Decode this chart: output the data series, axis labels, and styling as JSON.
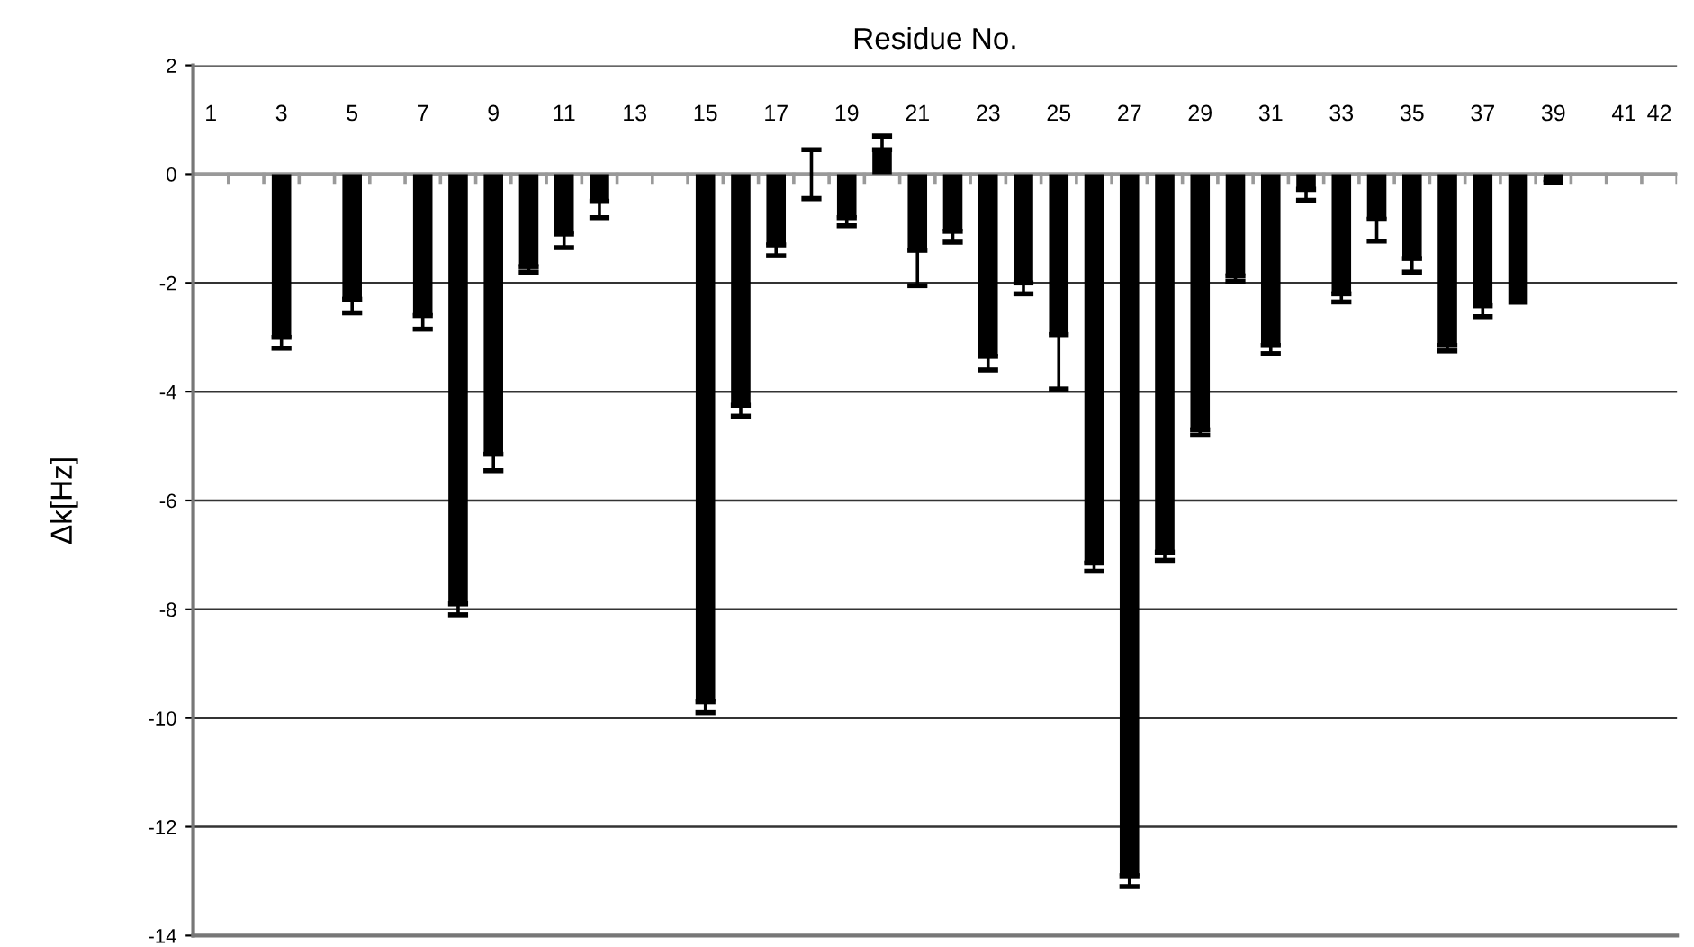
{
  "chart_data": {
    "type": "bar",
    "xlabel": "Residue No.",
    "ylabel": "Δk[Hz]",
    "categories": [
      "1",
      null,
      "3",
      null,
      "5",
      null,
      "7",
      null,
      "9",
      null,
      "11",
      null,
      "13",
      null,
      "15",
      null,
      "17",
      null,
      "19",
      null,
      "21",
      null,
      "23",
      null,
      "25",
      null,
      "27",
      null,
      "29",
      null,
      "31",
      null,
      "33",
      null,
      "35",
      null,
      "37",
      null,
      "39",
      null,
      "41",
      "42"
    ],
    "values": [
      null,
      null,
      -3.0,
      null,
      -2.3,
      null,
      -2.6,
      -7.9,
      -5.15,
      -1.7,
      -1.1,
      -0.5,
      null,
      null,
      -9.7,
      -4.25,
      -1.3,
      0,
      -0.8,
      0.45,
      -1.4,
      -1.05,
      -3.35,
      -2.0,
      -2.95,
      -7.15,
      -12.9,
      -6.95,
      -4.7,
      -1.87,
      -3.15,
      -0.28,
      -2.2,
      -0.83,
      -1.55,
      -3.15,
      -2.42,
      -2.4,
      -0.1,
      null,
      null,
      null
    ],
    "errors": [
      null,
      null,
      0.2,
      null,
      0.25,
      null,
      0.25,
      0.2,
      0.3,
      0.1,
      0.25,
      0.3,
      null,
      null,
      0.2,
      0.2,
      0.2,
      0.45,
      0.15,
      0.25,
      0.65,
      0.2,
      0.25,
      0.2,
      1.0,
      0.15,
      0.2,
      0.15,
      0.1,
      0.1,
      0.15,
      0.2,
      0.15,
      0.4,
      0.25,
      0.1,
      0.2,
      null,
      0.05,
      null,
      null,
      null
    ],
    "color": "#000000",
    "ylim": [
      -14,
      2
    ],
    "yticks": [
      -14,
      -12,
      -10,
      -8,
      -6,
      -4,
      -2,
      0,
      2
    ],
    "grid": "y"
  }
}
